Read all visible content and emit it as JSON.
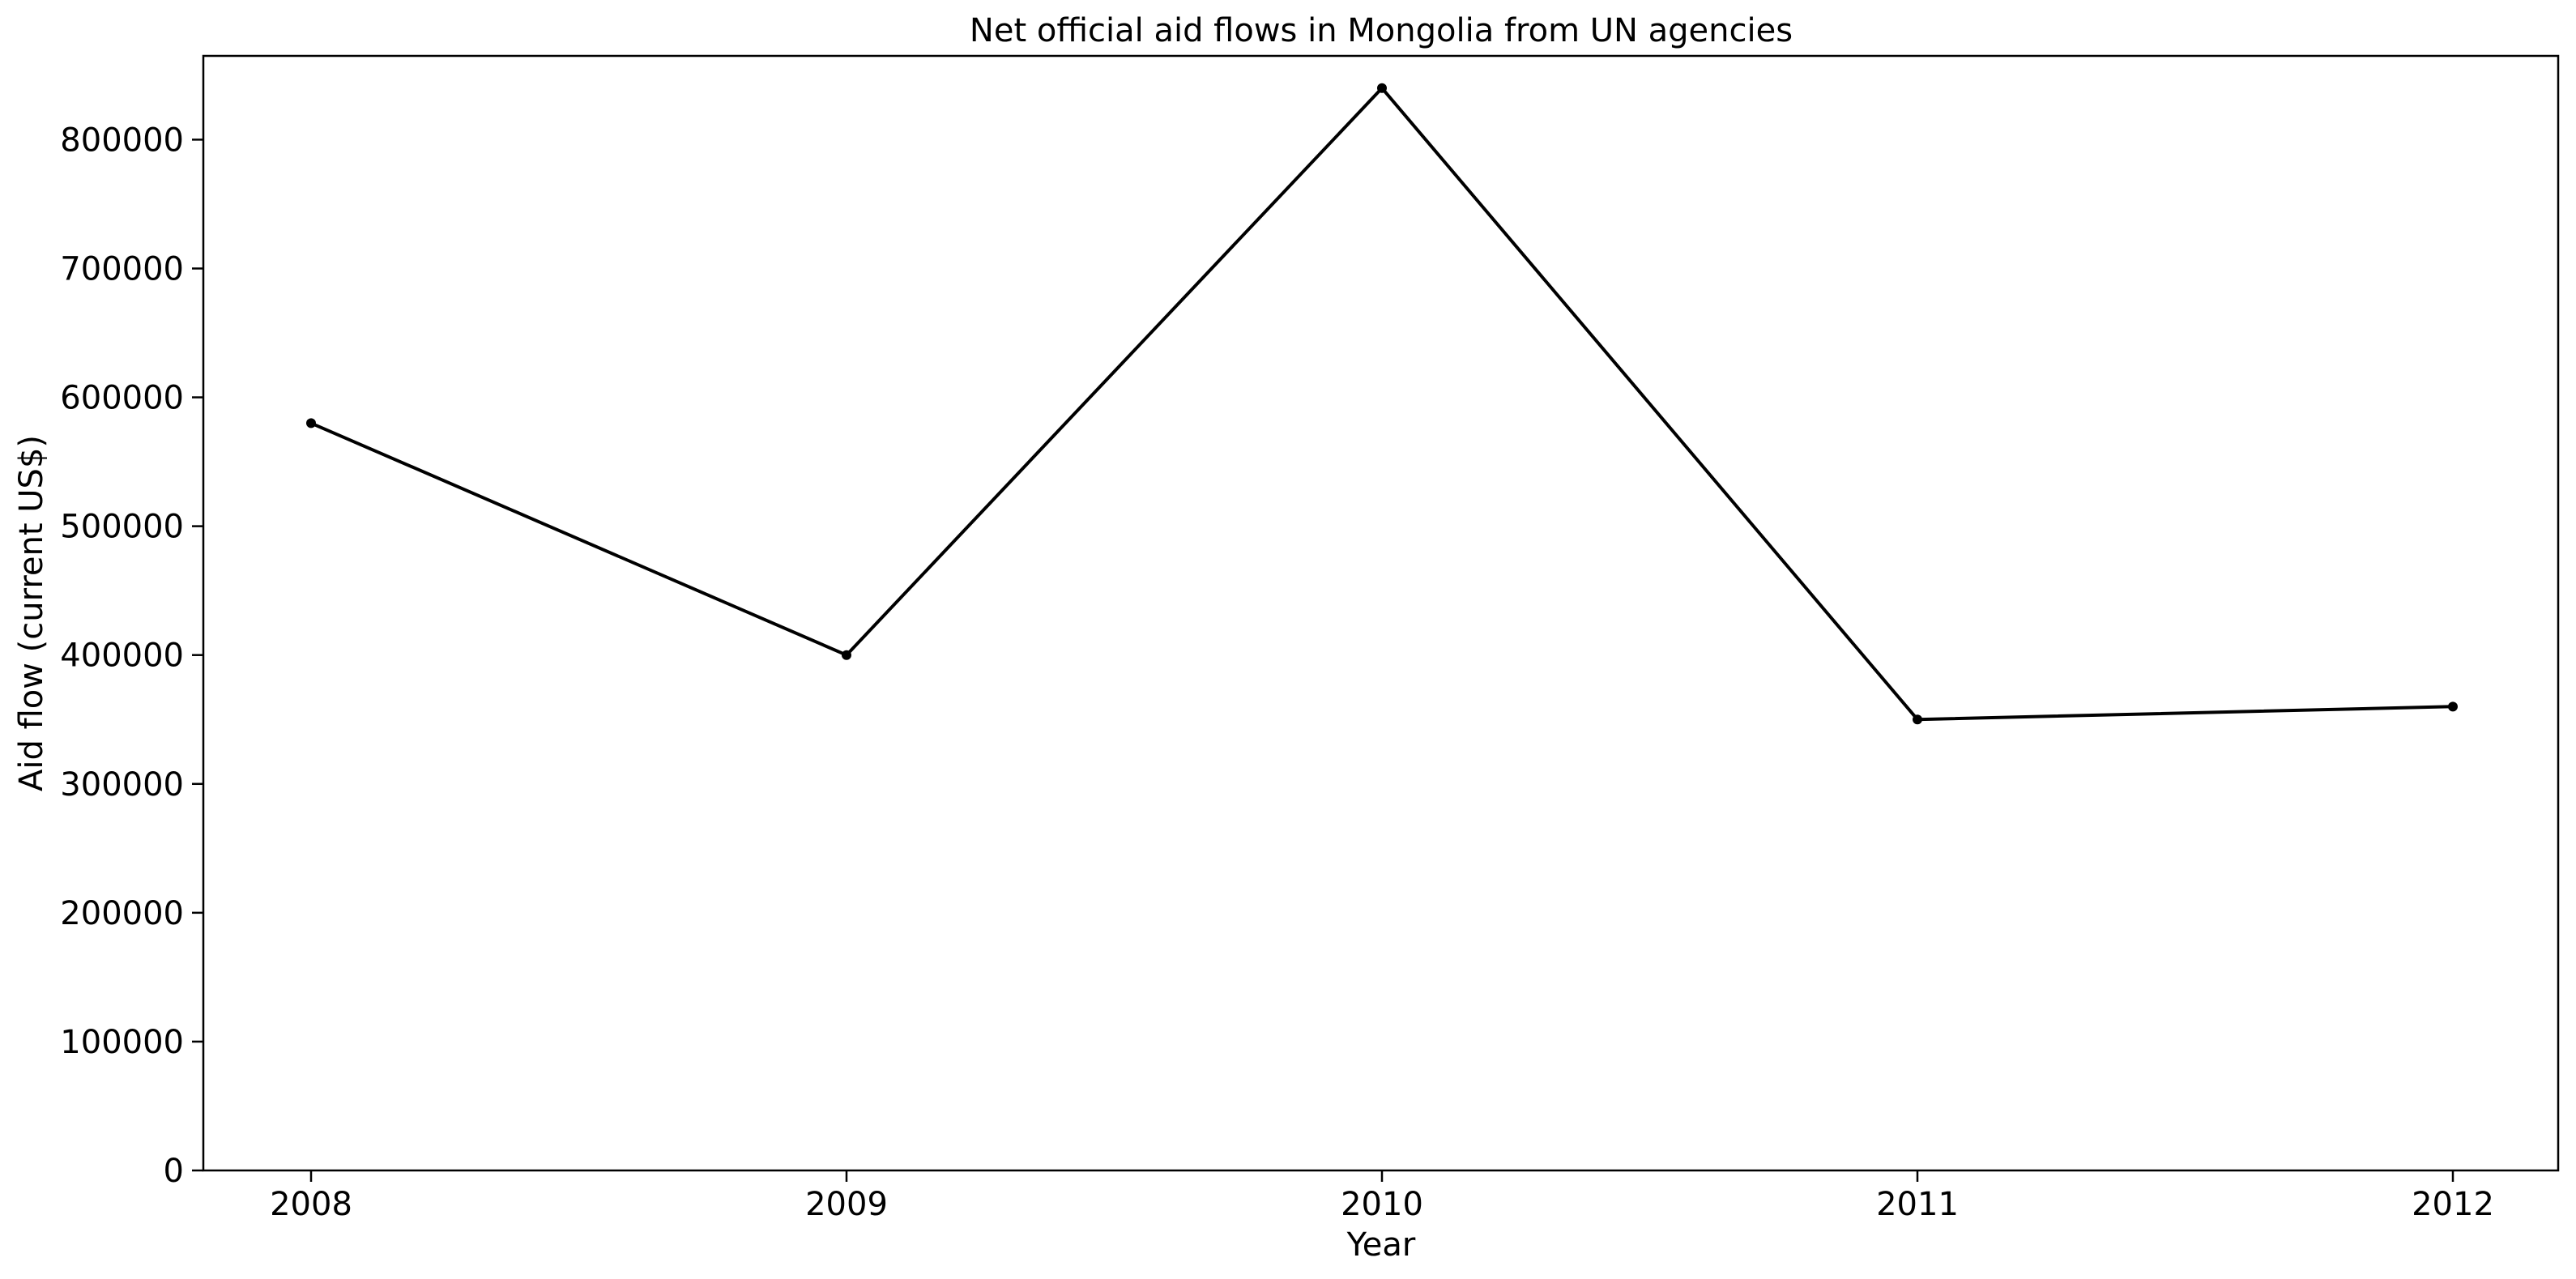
{
  "chart_data": {
    "type": "line",
    "title": "Net official aid flows in Mongolia from UN agencies",
    "xlabel": "Year",
    "ylabel": "Aid flow (current US$)",
    "x": [
      "2008",
      "2009",
      "2010",
      "2011",
      "2012"
    ],
    "series": [
      {
        "values": [
          580000,
          400000,
          840000,
          350000,
          360000
        ]
      }
    ],
    "ylim": [
      0,
      865000
    ],
    "yticks": [
      "0",
      "100000",
      "200000",
      "300000",
      "400000",
      "500000",
      "600000",
      "700000",
      "800000"
    ],
    "grid": false,
    "legend": "none",
    "colors": {
      "line": "#000000",
      "marker": "#000000",
      "axes": "#000000",
      "background": "#ffffff"
    }
  }
}
